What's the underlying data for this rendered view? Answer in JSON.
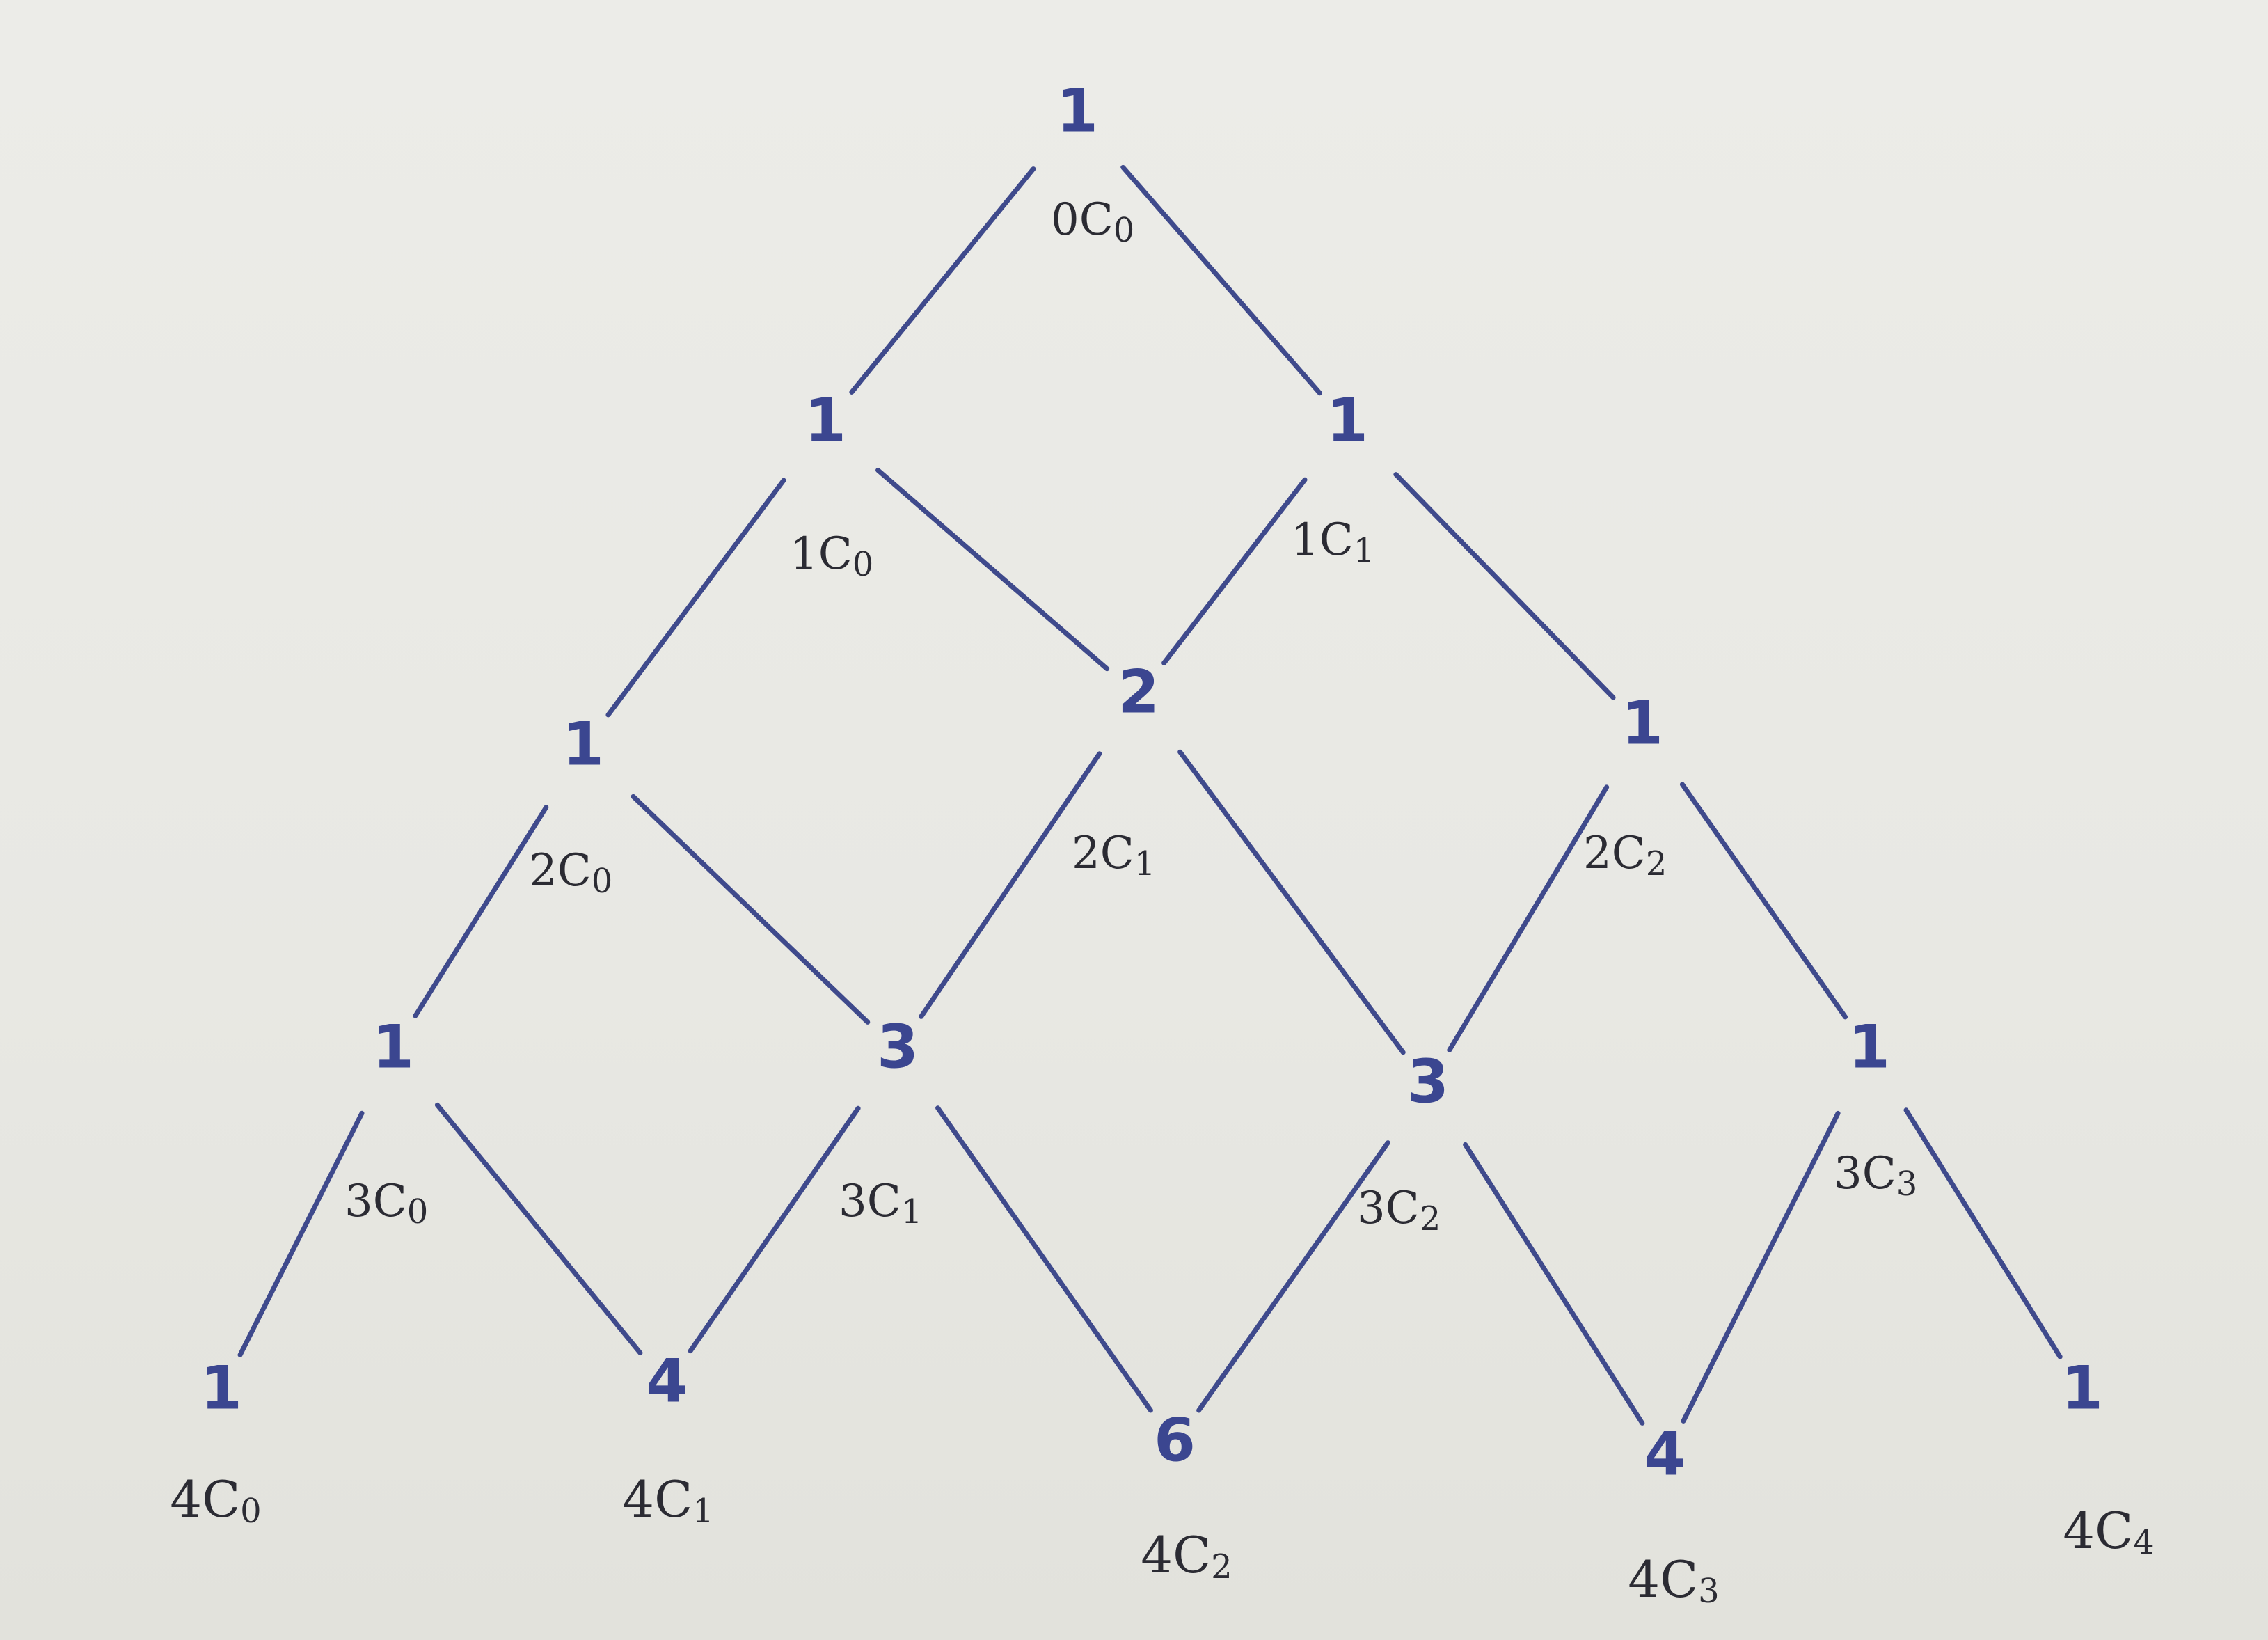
{
  "diagram": {
    "rows": [
      {
        "values": [
          "1"
        ],
        "labels": [
          "0C0"
        ]
      },
      {
        "values": [
          "1",
          "1"
        ],
        "labels": [
          "1C0",
          "1C1"
        ]
      },
      {
        "values": [
          "1",
          "2",
          "1"
        ],
        "labels": [
          "2C0",
          "2C1",
          "2C2"
        ]
      },
      {
        "values": [
          "1",
          "3",
          "3",
          "1"
        ],
        "labels": [
          "3C0",
          "3C1",
          "3C2",
          "3C3"
        ]
      },
      {
        "values": [
          "1",
          "4",
          "6",
          "4",
          "1"
        ],
        "labels": [
          "4C0",
          "4C1",
          "4C2",
          "4C3",
          "4C4"
        ]
      }
    ],
    "colors": {
      "ink_numbers": "#3b4690",
      "ink_lines": "#3f4a8c",
      "ink_labels": "#2b2b33",
      "paper": "#ebebe6"
    }
  }
}
